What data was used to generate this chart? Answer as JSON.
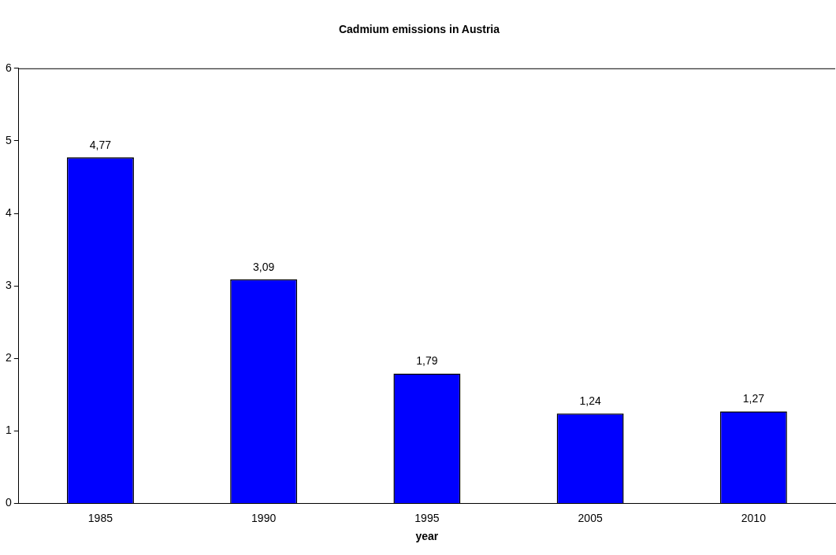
{
  "chart_data": {
    "type": "bar",
    "title": "Cadmium emissions in Austria",
    "xlabel": "year",
    "categories": [
      "1985",
      "1990",
      "1995",
      "2005",
      "2010"
    ],
    "values": [
      4.77,
      3.09,
      1.79,
      1.24,
      1.27
    ],
    "value_labels": [
      "4,77",
      "3,09",
      "1,79",
      "1,24",
      "1,27"
    ],
    "color": "#0000ff",
    "ylim": [
      0,
      6
    ],
    "yticks": [
      0,
      1,
      2,
      3,
      4,
      5,
      6
    ],
    "grid": false,
    "legend": false
  }
}
